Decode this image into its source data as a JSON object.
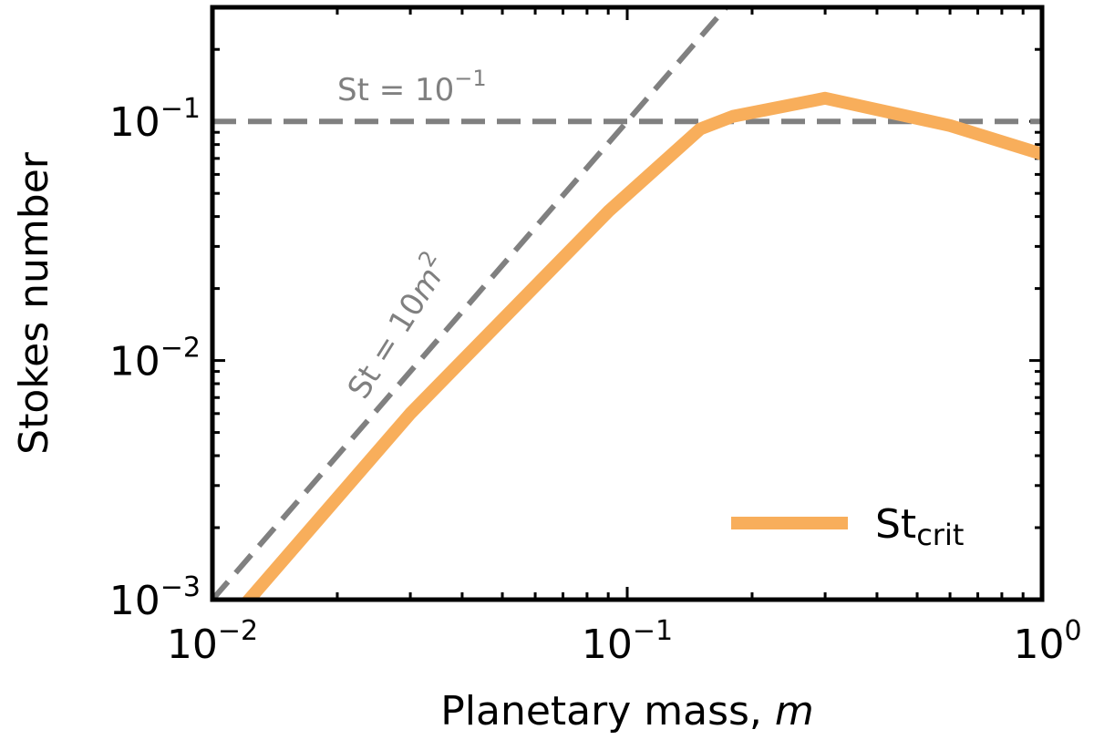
{
  "chart_data": {
    "type": "line",
    "xscale": "log",
    "yscale": "log",
    "xlim": [
      0.01,
      1
    ],
    "ylim": [
      0.001,
      0.3
    ],
    "grid": false,
    "legend_placement": "lower-right",
    "xlabel": {
      "text": "Planetary mass, ",
      "var": "m"
    },
    "ylabel": "Stokes number",
    "xticks": [
      {
        "value": 0.01,
        "base": "10",
        "exp": "−2"
      },
      {
        "value": 0.1,
        "base": "10",
        "exp": "−1"
      },
      {
        "value": 1,
        "base": "10",
        "exp": "0"
      }
    ],
    "yticks": [
      {
        "value": 0.001,
        "base": "10",
        "exp": "−3"
      },
      {
        "value": 0.01,
        "base": "10",
        "exp": "−2"
      },
      {
        "value": 0.1,
        "base": "10",
        "exp": "−1"
      }
    ],
    "series": [
      {
        "name": "St",
        "name_sub": "crit",
        "color": "#F8AE5B",
        "x": [
          0.0115,
          0.03,
          0.09,
          0.15,
          0.18,
          0.3,
          0.6,
          1.0
        ],
        "y": [
          0.00088,
          0.006,
          0.042,
          0.093,
          0.105,
          0.125,
          0.096,
          0.073
        ]
      }
    ],
    "reference_lines": [
      {
        "kind": "horizontal",
        "y": 0.1,
        "color": "#808080",
        "label_base": "St = 10",
        "label_exp": "−1"
      },
      {
        "kind": "power",
        "coef": 10,
        "power": 2,
        "color": "#808080",
        "label_base": "St = 10",
        "label_var": "m",
        "label_exp": "2"
      }
    ]
  }
}
